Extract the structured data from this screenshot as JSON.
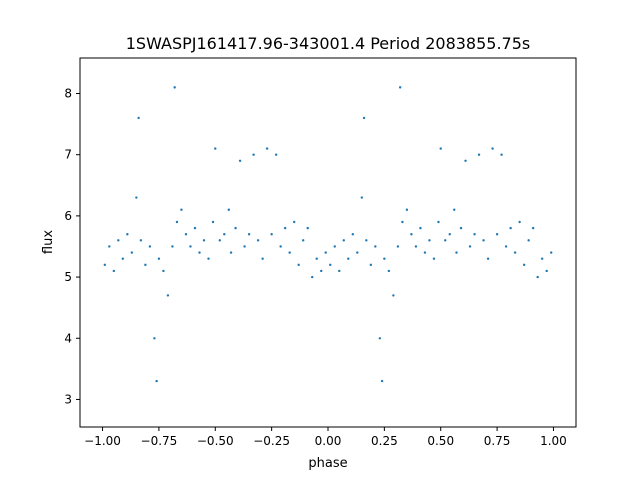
{
  "chart_data": {
    "type": "scatter",
    "title": "1SWASPJ161417.96-343001.4 Period 2083855.75s",
    "xlabel": "phase",
    "ylabel": "flux",
    "xlim": [
      -1.1,
      1.1
    ],
    "ylim": [
      2.55,
      8.58
    ],
    "xticks": [
      -1.0,
      -0.75,
      -0.5,
      -0.25,
      0.0,
      0.25,
      0.5,
      0.75,
      1.0
    ],
    "xtick_labels": [
      "−1.00",
      "−0.75",
      "−0.50",
      "−0.25",
      "0.00",
      "0.25",
      "0.50",
      "0.75",
      "1.00"
    ],
    "yticks": [
      3,
      4,
      5,
      6,
      7,
      8
    ],
    "ytick_labels": [
      "3",
      "4",
      "5",
      "6",
      "7",
      "8"
    ],
    "grid": false,
    "legend": "none",
    "marker_color": "#1f77b4",
    "series": [
      {
        "values_description_free": true,
        "points": [
          [
            -0.99,
            5.2
          ],
          [
            -0.97,
            5.5
          ],
          [
            -0.95,
            5.1
          ],
          [
            -0.93,
            5.6
          ],
          [
            -0.91,
            5.3
          ],
          [
            -0.89,
            5.7
          ],
          [
            -0.87,
            5.4
          ],
          [
            -0.85,
            6.3
          ],
          [
            -0.84,
            7.6
          ],
          [
            -0.83,
            5.6
          ],
          [
            -0.81,
            5.2
          ],
          [
            -0.79,
            5.5
          ],
          [
            -0.77,
            4.0
          ],
          [
            -0.76,
            3.3
          ],
          [
            -0.75,
            5.3
          ],
          [
            -0.73,
            5.1
          ],
          [
            -0.71,
            4.7
          ],
          [
            -0.69,
            5.5
          ],
          [
            -0.68,
            8.1
          ],
          [
            -0.67,
            5.9
          ],
          [
            -0.65,
            6.1
          ],
          [
            -0.63,
            5.7
          ],
          [
            -0.61,
            5.5
          ],
          [
            -0.59,
            5.8
          ],
          [
            -0.57,
            5.4
          ],
          [
            -0.55,
            5.6
          ],
          [
            -0.53,
            5.3
          ],
          [
            -0.51,
            5.9
          ],
          [
            -0.5,
            7.1
          ],
          [
            -0.48,
            5.6
          ],
          [
            -0.46,
            5.7
          ],
          [
            -0.44,
            6.1
          ],
          [
            -0.43,
            5.4
          ],
          [
            -0.41,
            5.8
          ],
          [
            -0.39,
            6.9
          ],
          [
            -0.37,
            5.5
          ],
          [
            -0.35,
            5.7
          ],
          [
            -0.33,
            7.0
          ],
          [
            -0.31,
            5.6
          ],
          [
            -0.29,
            5.3
          ],
          [
            -0.27,
            7.1
          ],
          [
            -0.25,
            5.7
          ],
          [
            -0.23,
            7.0
          ],
          [
            -0.21,
            5.5
          ],
          [
            -0.19,
            5.8
          ],
          [
            -0.17,
            5.4
          ],
          [
            -0.15,
            5.9
          ],
          [
            -0.13,
            5.2
          ],
          [
            -0.11,
            5.6
          ],
          [
            -0.09,
            5.8
          ],
          [
            -0.07,
            5.0
          ],
          [
            -0.05,
            5.3
          ],
          [
            -0.03,
            5.1
          ],
          [
            -0.01,
            5.4
          ],
          [
            0.01,
            5.2
          ],
          [
            0.03,
            5.5
          ],
          [
            0.05,
            5.1
          ],
          [
            0.07,
            5.6
          ],
          [
            0.09,
            5.3
          ],
          [
            0.11,
            5.7
          ],
          [
            0.13,
            5.4
          ],
          [
            0.15,
            6.3
          ],
          [
            0.16,
            7.6
          ],
          [
            0.17,
            5.6
          ],
          [
            0.19,
            5.2
          ],
          [
            0.21,
            5.5
          ],
          [
            0.23,
            4.0
          ],
          [
            0.24,
            3.3
          ],
          [
            0.25,
            5.3
          ],
          [
            0.27,
            5.1
          ],
          [
            0.29,
            4.7
          ],
          [
            0.31,
            5.5
          ],
          [
            0.32,
            8.1
          ],
          [
            0.33,
            5.9
          ],
          [
            0.35,
            6.1
          ],
          [
            0.37,
            5.7
          ],
          [
            0.39,
            5.5
          ],
          [
            0.41,
            5.8
          ],
          [
            0.43,
            5.4
          ],
          [
            0.45,
            5.6
          ],
          [
            0.47,
            5.3
          ],
          [
            0.49,
            5.9
          ],
          [
            0.5,
            7.1
          ],
          [
            0.52,
            5.6
          ],
          [
            0.54,
            5.7
          ],
          [
            0.56,
            6.1
          ],
          [
            0.57,
            5.4
          ],
          [
            0.59,
            5.8
          ],
          [
            0.61,
            6.9
          ],
          [
            0.63,
            5.5
          ],
          [
            0.65,
            5.7
          ],
          [
            0.67,
            7.0
          ],
          [
            0.69,
            5.6
          ],
          [
            0.71,
            5.3
          ],
          [
            0.73,
            7.1
          ],
          [
            0.75,
            5.7
          ],
          [
            0.77,
            7.0
          ],
          [
            0.79,
            5.5
          ],
          [
            0.81,
            5.8
          ],
          [
            0.83,
            5.4
          ],
          [
            0.85,
            5.9
          ],
          [
            0.87,
            5.2
          ],
          [
            0.89,
            5.6
          ],
          [
            0.91,
            5.8
          ],
          [
            0.93,
            5.0
          ],
          [
            0.95,
            5.3
          ],
          [
            0.97,
            5.1
          ],
          [
            0.99,
            5.4
          ]
        ]
      }
    ]
  }
}
